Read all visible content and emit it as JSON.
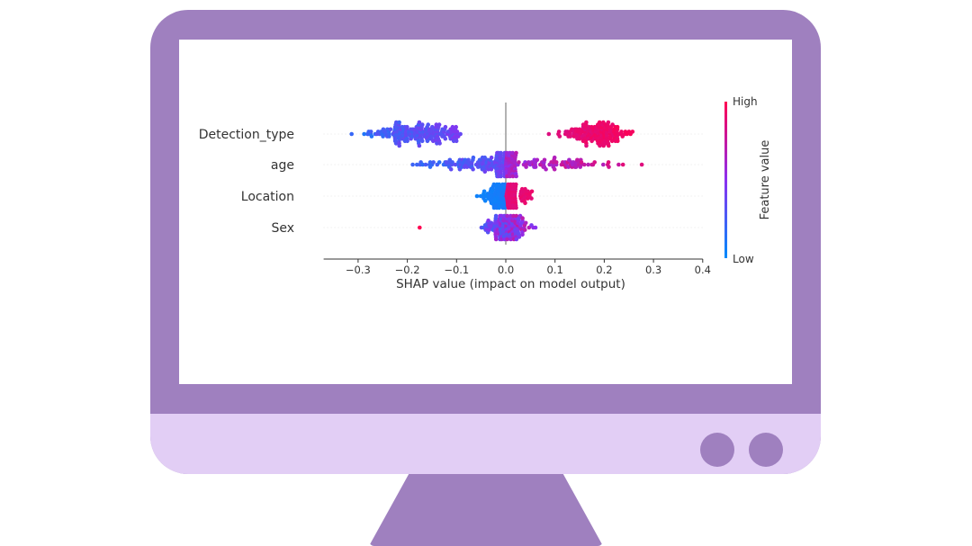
{
  "chart_data": {
    "type": "scatter",
    "subtype": "beeswarm",
    "features": [
      "Detection_type",
      "age",
      "Location",
      "Sex"
    ],
    "xlabel": "SHAP value (impact on model output)",
    "xlim": [
      -0.37,
      0.4
    ],
    "xticks": [
      -0.3,
      -0.2,
      -0.1,
      0.0,
      0.1,
      0.2,
      0.3,
      0.4
    ],
    "xtick_labels": [
      "−0.3",
      "−0.2",
      "−0.1",
      "0.0",
      "0.1",
      "0.2",
      "0.3",
      "0.4"
    ],
    "colorbar": {
      "label": "Feature value",
      "high": "High",
      "low": "Low",
      "high_color": "#ff0051",
      "low_color": "#008bfb"
    },
    "clusters": [
      {
        "feature": "Detection_type",
        "lo": -0.35,
        "hi": -0.09,
        "center": -0.18,
        "spread": 0.045,
        "n": 180,
        "color_from": 0.05,
        "color_to": 0.5
      },
      {
        "feature": "Detection_type",
        "lo": 0.06,
        "hi": 0.26,
        "center": 0.18,
        "spread": 0.035,
        "n": 160,
        "color_from": 0.8,
        "color_to": 1.0
      },
      {
        "feature": "age",
        "lo": -0.3,
        "hi": 0.0,
        "center": -0.02,
        "spread": 0.07,
        "n": 180,
        "color_from": 0.0,
        "color_to": 0.45
      },
      {
        "feature": "age",
        "lo": 0.0,
        "hi": 0.37,
        "center": 0.02,
        "spread": 0.1,
        "n": 170,
        "color_from": 0.5,
        "color_to": 1.0
      },
      {
        "feature": "Location",
        "lo": -0.13,
        "hi": 0.0,
        "center": -0.01,
        "spread": 0.02,
        "n": 90,
        "color_from": 0.0,
        "color_to": 0.1
      },
      {
        "feature": "Location",
        "lo": 0.0,
        "hi": 0.26,
        "center": 0.01,
        "spread": 0.02,
        "n": 80,
        "color_from": 0.85,
        "color_to": 1.0
      },
      {
        "feature": "Sex",
        "lo": -0.1,
        "hi": 0.11,
        "center": 0.0,
        "spread": 0.02,
        "n": 200,
        "color_from": 0.0,
        "color_to": 1.0
      },
      {
        "feature": "Sex",
        "lo": -0.175,
        "hi": -0.175,
        "center": -0.175,
        "spread": 0.0,
        "n": 1,
        "color_from": 1.0,
        "color_to": 1.0
      }
    ]
  }
}
